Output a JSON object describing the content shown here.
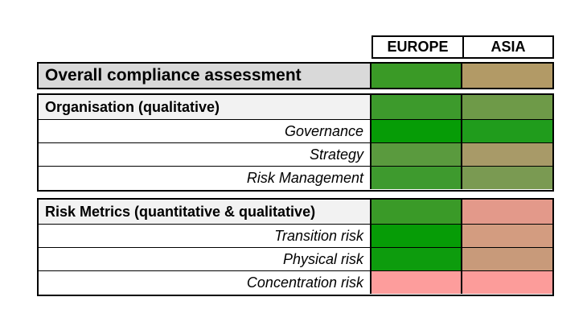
{
  "columns": {
    "europe": "EUROPE",
    "asia": "ASIA"
  },
  "overall": {
    "label": "Overall compliance assessment",
    "colors": {
      "europe": "#3a9a26",
      "asia": "#b29a66"
    }
  },
  "sections": [
    {
      "title": "Organisation (qualitative)",
      "colors": {
        "europe": "#3d9a2c",
        "asia": "#6e9a48"
      },
      "rows": [
        {
          "label": "Governance",
          "colors": {
            "europe": "#069c06",
            "asia": "#209c1c"
          }
        },
        {
          "label": "Strategy",
          "colors": {
            "europe": "#5a9a3e",
            "asia": "#a89a68"
          }
        },
        {
          "label": "Risk Management",
          "colors": {
            "europe": "#3e9a2e",
            "asia": "#7a9a52"
          }
        }
      ]
    },
    {
      "title": "Risk Metrics (quantitative & qualitative)",
      "colors": {
        "europe": "#3a9a28",
        "asia": "#e3998a"
      },
      "rows": [
        {
          "label": "Transition risk",
          "colors": {
            "europe": "#069c06",
            "asia": "#d39c80"
          }
        },
        {
          "label": "Physical risk",
          "colors": {
            "europe": "#0d9c0d",
            "asia": "#c89a7a"
          }
        },
        {
          "label": "Concentration risk",
          "colors": {
            "europe": "#fd9d9c",
            "asia": "#fc9c9a"
          }
        }
      ]
    }
  ]
}
